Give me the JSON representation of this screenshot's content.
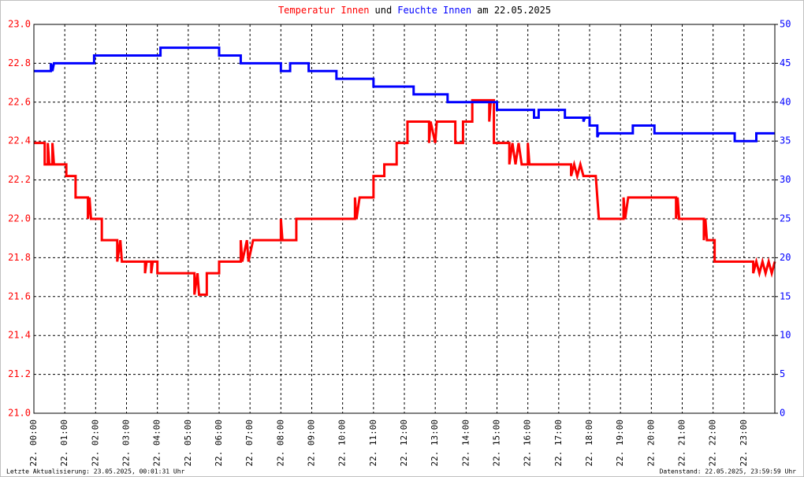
{
  "chart_data": {
    "type": "line",
    "title": [
      {
        "text": "Temperatur Innen",
        "color": "#ff0000"
      },
      {
        "text": "und",
        "color": "#000000"
      },
      {
        "text": "Feuchte Innen",
        "color": "#0000ff"
      },
      {
        "text": "am 22.05.2025",
        "color": "#000000"
      }
    ],
    "footer_left": "Letzte Aktualisierung: 23.05.2025, 00:01:31 Uhr",
    "footer_right": "Datenstand: 22.05.2025, 23:59:59 Uhr",
    "grid": true,
    "xlim": [
      0,
      24
    ],
    "xticks": [
      {
        "value": 0,
        "label": "22. 00:00"
      },
      {
        "value": 1,
        "label": "22. 01:00"
      },
      {
        "value": 2,
        "label": "22. 02:00"
      },
      {
        "value": 3,
        "label": "22. 03:00"
      },
      {
        "value": 4,
        "label": "22. 04:00"
      },
      {
        "value": 5,
        "label": "22. 05:00"
      },
      {
        "value": 6,
        "label": "22. 06:00"
      },
      {
        "value": 7,
        "label": "22. 07:00"
      },
      {
        "value": 8,
        "label": "22. 08:00"
      },
      {
        "value": 9,
        "label": "22. 09:00"
      },
      {
        "value": 10,
        "label": "22. 10:00"
      },
      {
        "value": 11,
        "label": "22. 11:00"
      },
      {
        "value": 12,
        "label": "22. 12:00"
      },
      {
        "value": 13,
        "label": "22. 13:00"
      },
      {
        "value": 14,
        "label": "22. 14:00"
      },
      {
        "value": 15,
        "label": "22. 15:00"
      },
      {
        "value": 16,
        "label": "22. 16:00"
      },
      {
        "value": 17,
        "label": "22. 17:00"
      },
      {
        "value": 18,
        "label": "22. 18:00"
      },
      {
        "value": 19,
        "label": "22. 19:00"
      },
      {
        "value": 20,
        "label": "22. 20:00"
      },
      {
        "value": 21,
        "label": "22. 21:00"
      },
      {
        "value": 22,
        "label": "22. 22:00"
      },
      {
        "value": 23,
        "label": "22. 23:00"
      }
    ],
    "ylim": [
      21,
      23
    ],
    "yticks": [
      {
        "value": 21,
        "label": "21.0"
      },
      {
        "value": 21.2,
        "label": "21.2"
      },
      {
        "value": 21.4,
        "label": "21.4"
      },
      {
        "value": 21.6,
        "label": "21.6"
      },
      {
        "value": 21.8,
        "label": "21.8"
      },
      {
        "value": 22,
        "label": "22.0"
      },
      {
        "value": 22.2,
        "label": "22.2"
      },
      {
        "value": 22.4,
        "label": "22.4"
      },
      {
        "value": 22.6,
        "label": "22.6"
      },
      {
        "value": 22.8,
        "label": "22.8"
      },
      {
        "value": 23,
        "label": "23.0"
      }
    ],
    "y2lim": [
      0,
      50
    ],
    "y2ticks": [
      0,
      5,
      10,
      15,
      20,
      25,
      30,
      35,
      40,
      45,
      50
    ],
    "series": [
      {
        "color": "#ff0000",
        "axis": "y",
        "x": [
          0,
          0.35,
          0.35,
          0.45,
          0.45,
          0.5,
          0.6,
          0.6,
          0.65,
          1.05,
          1.05,
          1.35,
          1.35,
          1.75,
          1.75,
          1.8,
          1.85,
          2.2,
          2.2,
          2.7,
          2.7,
          2.8,
          2.85,
          3.6,
          3.6,
          3.65,
          3.8,
          3.8,
          3.85,
          4.0,
          4.0,
          5.2,
          5.2,
          5.3,
          5.35,
          5.6,
          5.6,
          6.0,
          6.0,
          6.7,
          6.7,
          6.75,
          6.9,
          6.95,
          7.1,
          8.0,
          8.0,
          8.05,
          8.5,
          8.5,
          10.4,
          10.4,
          10.45,
          10.55,
          11.0,
          11.0,
          11.35,
          11.35,
          11.75,
          11.75,
          12.1,
          12.1,
          12.8,
          12.8,
          12.85,
          13.0,
          13.05,
          13.65,
          13.65,
          13.9,
          13.9,
          14.2,
          14.2,
          14.75,
          14.75,
          14.8,
          14.9,
          14.9,
          15.4,
          15.4,
          15.5,
          15.6,
          15.7,
          15.8,
          16.0,
          16.0,
          16.05,
          17.4,
          17.4,
          17.5,
          17.6,
          17.7,
          17.8,
          18.2,
          18.3,
          19.1,
          19.1,
          19.15,
          19.25,
          20.8,
          20.8,
          20.85,
          20.9,
          21.7,
          21.7,
          21.75,
          21.8,
          22.05,
          22.05,
          23.3,
          23.3,
          23.4,
          23.5,
          23.6,
          23.7,
          23.8,
          23.9,
          24
        ],
        "values": [
          22.39,
          22.39,
          22.28,
          22.28,
          22.39,
          22.28,
          22.28,
          22.39,
          22.28,
          22.28,
          22.22,
          22.22,
          22.11,
          22.11,
          22.0,
          22.11,
          22.0,
          22.0,
          21.89,
          21.89,
          21.78,
          21.89,
          21.78,
          21.78,
          21.72,
          21.78,
          21.78,
          21.72,
          21.78,
          21.78,
          21.72,
          21.72,
          21.61,
          21.72,
          21.61,
          21.61,
          21.72,
          21.72,
          21.78,
          21.78,
          21.89,
          21.78,
          21.89,
          21.78,
          21.89,
          21.89,
          22.0,
          21.89,
          21.89,
          22.0,
          22.0,
          22.11,
          22.0,
          22.11,
          22.11,
          22.22,
          22.22,
          22.28,
          22.28,
          22.39,
          22.39,
          22.5,
          22.5,
          22.39,
          22.5,
          22.39,
          22.5,
          22.5,
          22.39,
          22.39,
          22.5,
          22.5,
          22.61,
          22.61,
          22.5,
          22.61,
          22.61,
          22.39,
          22.39,
          22.28,
          22.39,
          22.28,
          22.39,
          22.28,
          22.28,
          22.39,
          22.28,
          22.28,
          22.22,
          22.28,
          22.22,
          22.28,
          22.22,
          22.22,
          22.0,
          22.0,
          22.11,
          22.0,
          22.11,
          22.11,
          22.0,
          22.11,
          22.0,
          22.0,
          21.89,
          22.0,
          21.89,
          21.89,
          21.78,
          21.78,
          21.72,
          21.78,
          21.72,
          21.78,
          21.72,
          21.78,
          21.72,
          21.78
        ]
      },
      {
        "color": "#0000ff",
        "axis": "y2",
        "x": [
          0,
          0.55,
          0.55,
          0.6,
          0.65,
          1.95,
          1.95,
          4.1,
          4.1,
          6.0,
          6.0,
          6.7,
          6.7,
          8.0,
          8.0,
          8.3,
          8.3,
          8.9,
          8.9,
          9.8,
          9.8,
          11.0,
          11.0,
          12.3,
          12.3,
          13.4,
          13.4,
          15.0,
          15.0,
          16.2,
          16.2,
          16.35,
          16.35,
          17.2,
          17.2,
          17.8,
          17.8,
          17.85,
          18.0,
          18.0,
          18.25,
          18.25,
          18.3,
          19.4,
          19.4,
          20.1,
          20.1,
          22.7,
          22.7,
          23.4,
          23.4,
          24
        ],
        "values": [
          44,
          44,
          45,
          44,
          45,
          45,
          46,
          46,
          47,
          47,
          46,
          46,
          45,
          45,
          44,
          44,
          45,
          45,
          44,
          44,
          43,
          43,
          42,
          42,
          41,
          41,
          40,
          40,
          39,
          39,
          38,
          38,
          39,
          39,
          38,
          38,
          37.5,
          38,
          38,
          37,
          37,
          35.5,
          36,
          36,
          37,
          37,
          36,
          36,
          35,
          35,
          36,
          36
        ]
      }
    ]
  }
}
